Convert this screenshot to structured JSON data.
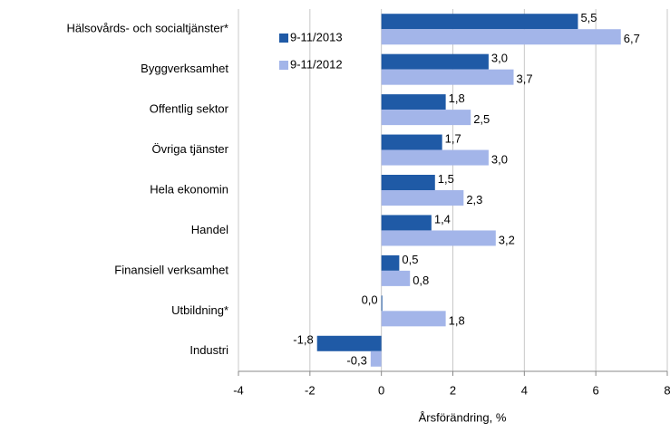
{
  "chart_data": {
    "type": "bar",
    "orientation": "horizontal",
    "categories": [
      "Hälsovårds- och socialtjänster*",
      "Byggverksamhet",
      "Offentlig sektor",
      "Övriga tjänster",
      "Hela ekonomin",
      "Handel",
      "Finansiell verksamhet",
      "Utbildning*",
      "Industri"
    ],
    "series": [
      {
        "name": "9-11/2013",
        "color": "#1f5aa6",
        "values": [
          5.5,
          3.0,
          1.8,
          1.7,
          1.5,
          1.4,
          0.5,
          0.0,
          -1.8
        ],
        "value_labels": [
          "5,5",
          "3,0",
          "1,8",
          "1,7",
          "1,5",
          "1,4",
          "0,5",
          "0,0",
          "-1,8"
        ]
      },
      {
        "name": "9-11/2012",
        "color": "#a3b5e9",
        "values": [
          6.7,
          3.7,
          2.5,
          3.0,
          2.3,
          3.2,
          0.8,
          1.8,
          -0.3
        ],
        "value_labels": [
          "6,7",
          "3,7",
          "2,5",
          "3,0",
          "2,3",
          "3,2",
          "0,8",
          "1,8",
          "-0,3"
        ]
      }
    ],
    "xlabel": "Årsförändring, %",
    "xlim": [
      -4,
      8
    ],
    "xticks": [
      -4,
      -2,
      0,
      2,
      4,
      6,
      8
    ],
    "grid": true,
    "legend": "upper left"
  }
}
